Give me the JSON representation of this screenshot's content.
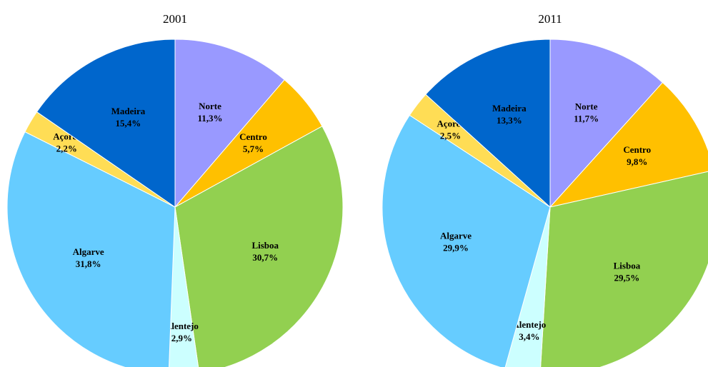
{
  "chart_data": [
    {
      "type": "pie",
      "title": "2001",
      "categories": [
        "Norte",
        "Centro",
        "Lisboa",
        "Alentejo",
        "Algarve",
        "Açores",
        "Madeira"
      ],
      "values": [
        11.3,
        5.7,
        30.7,
        2.9,
        31.8,
        2.2,
        15.4
      ],
      "value_labels": [
        "11,3%",
        "5,7%",
        "30,7%",
        "2,9%",
        "31,8%",
        "2,2%",
        "15,4%"
      ],
      "colors": [
        "#9999ff",
        "#ffc000",
        "#92d050",
        "#ccffff",
        "#66ccff",
        "#ffdd55",
        "#0066cc"
      ]
    },
    {
      "type": "pie",
      "title": "2011",
      "categories": [
        "Norte",
        "Centro",
        "Lisboa",
        "Alentejo",
        "Algarve",
        "Açores",
        "Madeira"
      ],
      "values": [
        11.7,
        9.8,
        29.5,
        3.4,
        29.9,
        2.5,
        13.3
      ],
      "value_labels": [
        "11,7%",
        "9,8%",
        "29,5%",
        "3,4%",
        "29,9%",
        "2,5%",
        "13,3%"
      ],
      "colors": [
        "#9999ff",
        "#ffc000",
        "#92d050",
        "#ccffff",
        "#66ccff",
        "#ffdd55",
        "#0066cc"
      ]
    }
  ]
}
